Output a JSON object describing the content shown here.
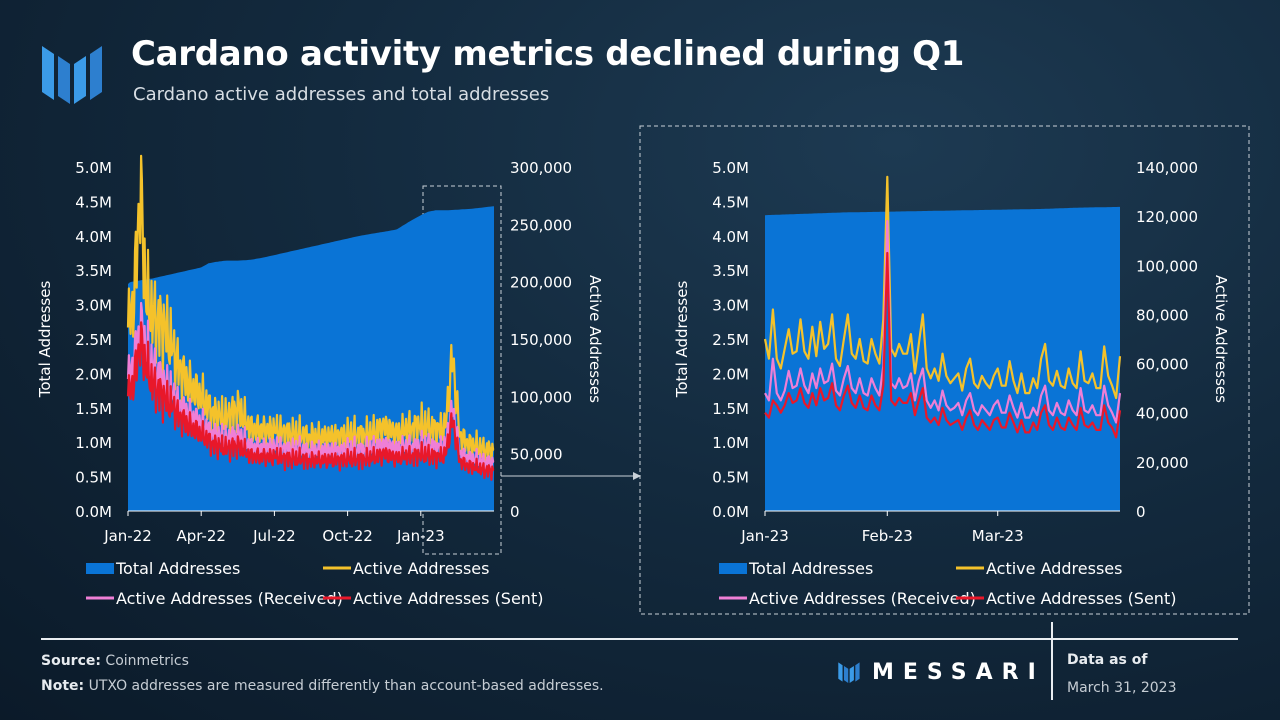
{
  "header": {
    "title": "Cardano activity metrics declined during Q1",
    "subtitle": "Cardano active addresses and total addresses"
  },
  "colors": {
    "total": "#0a74d6",
    "active": "#f4c22b",
    "received": "#ef7fd6",
    "sent": "#e8182a",
    "accent_logo": "#3b9be8"
  },
  "legend": {
    "total": "Total Addresses",
    "active": "Active Addresses",
    "received": "Active Addresses (Received)",
    "sent": "Active Addresses (Sent)"
  },
  "footer": {
    "source_label": "Source:",
    "source_value": "Coinmetrics",
    "note_label": "Note:",
    "note_value": "UTXO addresses are measured differently than account-based addresses.",
    "brand": "MESSARI",
    "data_as_of_label": "Data as of",
    "data_as_of_date": "March 31, 2023"
  },
  "chart_data": [
    {
      "type": "area",
      "name": "full-period",
      "xlabels": [
        "Jan-22",
        "Apr-22",
        "Jul-22",
        "Oct-22",
        "Jan-23"
      ],
      "xlabel_months": [
        0,
        3,
        6,
        9,
        12
      ],
      "x_range_months": [
        0,
        15
      ],
      "ylabel": "Total Addresses",
      "y2label": "Active Addresses",
      "yticks": [
        "0.0M",
        "0.5M",
        "1.0M",
        "1.5M",
        "2.0M",
        "2.5M",
        "3.0M",
        "3.5M",
        "4.0M",
        "4.5M",
        "5.0M"
      ],
      "y2ticks": [
        "0",
        "50,000",
        "100,000",
        "150,000",
        "200,000",
        "250,000",
        "300,000"
      ],
      "ylim": [
        0,
        5000000
      ],
      "y2lim": [
        0,
        300000
      ],
      "total_addresses": {
        "months": [
          0,
          0.1,
          0.3,
          1,
          1.5,
          2,
          2.5,
          3,
          3.3,
          3.6,
          4,
          4.5,
          5,
          5.5,
          6,
          6.5,
          7,
          7.5,
          8,
          8.5,
          9,
          9.5,
          10,
          10.5,
          11,
          11.5,
          12,
          12.3,
          12.6,
          13,
          13.5,
          14,
          14.5,
          15
        ],
        "values": [
          3300000,
          3330000,
          3340000,
          3380000,
          3420000,
          3460000,
          3500000,
          3540000,
          3600000,
          3620000,
          3640000,
          3640000,
          3650000,
          3680000,
          3720000,
          3760000,
          3800000,
          3840000,
          3880000,
          3920000,
          3960000,
          4000000,
          4030000,
          4060000,
          4090000,
          4200000,
          4300000,
          4350000,
          4370000,
          4370000,
          4380000,
          4390000,
          4410000,
          4430000
        ]
      },
      "active_addresses": {
        "months": [
          0,
          0.25,
          0.5,
          0.75,
          1,
          1.5,
          2,
          2.5,
          3,
          3.5,
          4,
          4.5,
          5,
          6,
          7,
          8,
          9,
          10,
          10.5,
          11,
          11.5,
          12,
          12.5,
          13,
          13.3,
          13.6,
          14,
          14.5,
          15
        ],
        "values": [
          160000,
          185000,
          285000,
          185000,
          170000,
          160000,
          130000,
          110000,
          100000,
          85000,
          80000,
          90000,
          72000,
          70000,
          66000,
          64000,
          66000,
          67000,
          74000,
          67000,
          72000,
          75000,
          72000,
          72000,
          135000,
          65000,
          58000,
          54000,
          52000
        ]
      },
      "active_received": {
        "months": [
          0,
          0.25,
          0.5,
          0.75,
          1,
          1.5,
          2,
          2.5,
          3,
          3.5,
          4,
          4.5,
          5,
          6,
          7,
          8,
          9,
          10,
          10.5,
          11,
          11.5,
          12,
          12.5,
          13,
          13.3,
          13.6,
          14,
          14.5,
          15
        ],
        "values": [
          115000,
          130000,
          165000,
          140000,
          125000,
          110000,
          95000,
          84000,
          76000,
          67000,
          62000,
          66000,
          56000,
          55000,
          53000,
          52000,
          53000,
          54000,
          58000,
          54000,
          56000,
          57000,
          56000,
          56000,
          90000,
          50000,
          46000,
          43000,
          42000
        ]
      },
      "active_sent": {
        "months": [
          0,
          0.25,
          0.5,
          0.75,
          1,
          1.5,
          2,
          2.5,
          3,
          3.5,
          4,
          4.5,
          5,
          6,
          7,
          8,
          9,
          10,
          10.5,
          11,
          11.5,
          12,
          12.5,
          13,
          13.3,
          13.6,
          14,
          14.5,
          15
        ],
        "values": [
          100000,
          115000,
          150000,
          125000,
          110000,
          98000,
          85000,
          74000,
          67000,
          58000,
          54000,
          57000,
          48000,
          47000,
          45000,
          44000,
          45000,
          46000,
          50000,
          46000,
          48000,
          49000,
          48000,
          48000,
          80000,
          43000,
          39000,
          36000,
          35000
        ]
      }
    },
    {
      "type": "area",
      "name": "q1-2023-zoom",
      "xlabels": [
        "Jan-23",
        "Feb-23",
        "Mar-23"
      ],
      "xlabel_days": [
        0,
        31,
        59
      ],
      "x_range_days": [
        0,
        90
      ],
      "ylabel": "Total Addresses",
      "y2label": "Active Addresses",
      "yticks": [
        "0.0M",
        "0.5M",
        "1.0M",
        "1.5M",
        "2.0M",
        "2.5M",
        "3.0M",
        "3.5M",
        "4.0M",
        "4.5M",
        "5.0M"
      ],
      "y2ticks": [
        "0",
        "20,000",
        "40,000",
        "60,000",
        "80,000",
        "100,000",
        "120,000",
        "140,000"
      ],
      "ylim": [
        0,
        5000000
      ],
      "y2lim": [
        0,
        140000
      ],
      "total_addresses": {
        "days": [
          0,
          10,
          20,
          31,
          40,
          50,
          60,
          70,
          80,
          90
        ],
        "values": [
          4300000,
          4320000,
          4340000,
          4350000,
          4360000,
          4370000,
          4380000,
          4390000,
          4410000,
          4420000
        ]
      },
      "active_addresses": {
        "days": [
          0,
          1,
          2,
          3,
          4,
          5,
          6,
          7,
          8,
          9,
          10,
          11,
          12,
          13,
          14,
          15,
          16,
          17,
          18,
          19,
          20,
          21,
          22,
          23,
          24,
          25,
          26,
          27,
          28,
          29,
          30,
          31,
          32,
          33,
          34,
          35,
          36,
          37,
          38,
          39,
          40,
          41,
          42,
          43,
          44,
          45,
          46,
          47,
          48,
          49,
          50,
          51,
          52,
          53,
          54,
          55,
          56,
          57,
          58,
          59,
          60,
          61,
          62,
          63,
          64,
          65,
          66,
          67,
          68,
          69,
          70,
          71,
          72,
          73,
          74,
          75,
          76,
          77,
          78,
          79,
          80,
          81,
          82,
          83,
          84,
          85,
          86,
          87,
          88,
          89,
          90
        ],
        "values": [
          70000,
          62000,
          82000,
          62000,
          58000,
          66000,
          74000,
          64000,
          65000,
          78000,
          65000,
          62000,
          75000,
          63000,
          77000,
          66000,
          68000,
          80000,
          62000,
          59000,
          70000,
          80000,
          64000,
          62000,
          70000,
          61000,
          60000,
          70000,
          64000,
          60000,
          78000,
          136000,
          66000,
          63000,
          68000,
          64000,
          64000,
          72000,
          56000,
          68000,
          80000,
          58000,
          54000,
          58000,
          53000,
          64000,
          55000,
          52000,
          54000,
          56000,
          49000,
          58000,
          62000,
          52000,
          50000,
          55000,
          52000,
          50000,
          55000,
          58000,
          51000,
          51000,
          61000,
          53000,
          48000,
          56000,
          48000,
          48000,
          54000,
          50000,
          62000,
          68000,
          53000,
          51000,
          57000,
          51000,
          50000,
          58000,
          52000,
          50000,
          65000,
          53000,
          52000,
          56000,
          50000,
          50000,
          67000,
          55000,
          51000,
          46000,
          63000
        ]
      },
      "active_received": {
        "days": [
          0,
          1,
          2,
          3,
          4,
          5,
          6,
          7,
          8,
          9,
          10,
          11,
          12,
          13,
          14,
          15,
          16,
          17,
          18,
          19,
          20,
          21,
          22,
          23,
          24,
          25,
          26,
          27,
          28,
          29,
          30,
          31,
          32,
          33,
          34,
          35,
          36,
          37,
          38,
          39,
          40,
          41,
          42,
          43,
          44,
          45,
          46,
          47,
          48,
          49,
          50,
          51,
          52,
          53,
          54,
          55,
          56,
          57,
          58,
          59,
          60,
          61,
          62,
          63,
          64,
          65,
          66,
          67,
          68,
          69,
          70,
          71,
          72,
          73,
          74,
          75,
          76,
          77,
          78,
          79,
          80,
          81,
          82,
          83,
          84,
          85,
          86,
          87,
          88,
          89,
          90
        ],
        "values": [
          48000,
          45000,
          62000,
          48000,
          45000,
          49000,
          57000,
          50000,
          51000,
          58000,
          51000,
          48000,
          56000,
          50000,
          58000,
          52000,
          53000,
          60000,
          49000,
          47000,
          54000,
          59000,
          50000,
          48000,
          54000,
          48000,
          47000,
          54000,
          50000,
          47000,
          59000,
          118000,
          52000,
          50000,
          54000,
          50000,
          51000,
          56000,
          45000,
          53000,
          58000,
          45000,
          42000,
          45000,
          41000,
          49000,
          43000,
          41000,
          42000,
          44000,
          39000,
          45000,
          48000,
          41000,
          39000,
          43000,
          41000,
          39000,
          43000,
          45000,
          40000,
          40000,
          47000,
          42000,
          38000,
          44000,
          38000,
          38000,
          42000,
          39000,
          47000,
          51000,
          41000,
          39000,
          44000,
          40000,
          39000,
          45000,
          41000,
          39000,
          50000,
          41000,
          40000,
          43000,
          39000,
          39000,
          51000,
          43000,
          40000,
          36000,
          48000
        ]
      },
      "active_sent": {
        "days": [
          0,
          1,
          2,
          3,
          4,
          5,
          6,
          7,
          8,
          9,
          10,
          11,
          12,
          13,
          14,
          15,
          16,
          17,
          18,
          19,
          20,
          21,
          22,
          23,
          24,
          25,
          26,
          27,
          28,
          29,
          30,
          31,
          32,
          33,
          34,
          35,
          36,
          37,
          38,
          39,
          40,
          41,
          42,
          43,
          44,
          45,
          46,
          47,
          48,
          49,
          50,
          51,
          52,
          53,
          54,
          55,
          56,
          57,
          58,
          59,
          60,
          61,
          62,
          63,
          64,
          65,
          66,
          67,
          68,
          69,
          70,
          71,
          72,
          73,
          74,
          75,
          76,
          77,
          78,
          79,
          80,
          81,
          82,
          83,
          84,
          85,
          86,
          87,
          88,
          89,
          90
        ],
        "values": [
          40000,
          38000,
          45000,
          43000,
          40000,
          43000,
          48000,
          44000,
          45000,
          50000,
          44000,
          42000,
          48000,
          43000,
          50000,
          45000,
          46000,
          52000,
          43000,
          41000,
          47000,
          51000,
          44000,
          42000,
          47000,
          42000,
          41000,
          47000,
          43000,
          41000,
          51000,
          105000,
          45000,
          43000,
          46000,
          44000,
          44000,
          48000,
          39000,
          45000,
          50000,
          38000,
          36000,
          38000,
          35000,
          42000,
          37000,
          35000,
          36000,
          37000,
          33000,
          38000,
          41000,
          35000,
          33000,
          37000,
          35000,
          33000,
          37000,
          38000,
          34000,
          34000,
          40000,
          36000,
          32000,
          37000,
          32000,
          32000,
          36000,
          33000,
          40000,
          43000,
          35000,
          33000,
          38000,
          34000,
          33000,
          38000,
          35000,
          33000,
          42000,
          35000,
          34000,
          36000,
          33000,
          33000,
          43000,
          36000,
          34000,
          30000,
          41000
        ]
      }
    }
  ]
}
